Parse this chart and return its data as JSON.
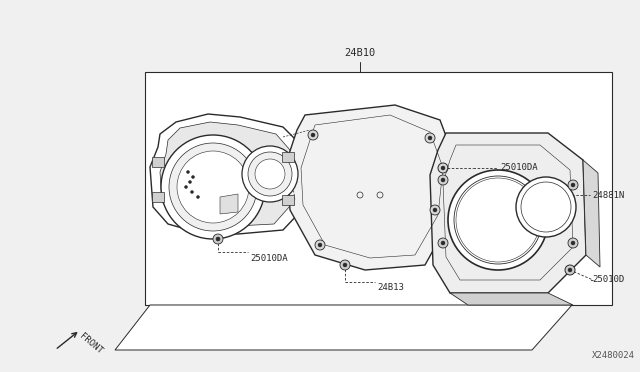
{
  "bg_color": "#f0f0f0",
  "white": "#ffffff",
  "line_color": "#2a2a2a",
  "part_color": "#3a3a3a",
  "label_color": "#2a2a2a",
  "light_gray": "#cccccc",
  "mid_gray": "#aaaaaa",
  "title_label": "24B10",
  "label_24B13": "24B13",
  "label_25010DA_top": "25010DA",
  "label_25010DA_bot": "25010DA",
  "label_24881N": "24881N",
  "label_25010D": "25010D",
  "watermark": "X2480024",
  "front_label": "FRONT",
  "font_size_labels": 6.5,
  "font_size_watermark": 6.5,
  "figw": 6.4,
  "figh": 3.72,
  "dpi": 100
}
